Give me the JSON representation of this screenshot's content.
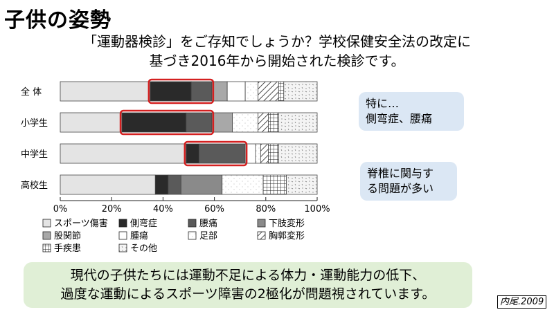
{
  "title": "子供の姿勢",
  "subtitle_lines": [
    "「運動器検診」をご存知でしょうか？学校保健安全法の改定に",
    "基づき2016年から開始された検診です。"
  ],
  "callouts": [
    {
      "lines": [
        "特に…",
        "側弯症、腰痛"
      ]
    },
    {
      "lines": [
        "脊椎に関与す",
        "る問題が多い"
      ]
    }
  ],
  "summary_lines": [
    "現代の子供たちには運動不足による体力・運動能力の低下、",
    "過度な運動によるスポーツ障害の2極化が問題視されています。"
  ],
  "citation": "内尾.2009",
  "chart_data": {
    "type": "bar",
    "orientation": "horizontal",
    "stacked": true,
    "categories": [
      "全 体",
      "小学生",
      "中学生",
      "高校生"
    ],
    "xlim": [
      0,
      100
    ],
    "x_ticks": [
      "0%",
      "20%",
      "40%",
      "60%",
      "80%",
      "100%"
    ],
    "series": [
      {
        "name": "スポーツ傷害",
        "pattern": "light",
        "values": [
          35,
          24,
          49,
          37
        ]
      },
      {
        "name": "側弯症",
        "pattern": "black",
        "values": [
          16,
          25,
          5,
          5
        ]
      },
      {
        "name": "腰痛",
        "pattern": "dark",
        "values": [
          8,
          10,
          18,
          5
        ]
      },
      {
        "name": "下肢変形",
        "pattern": "mid",
        "values": [
          0,
          0,
          0,
          16
        ]
      },
      {
        "name": "股関節",
        "pattern": "midlight",
        "values": [
          6,
          8,
          0,
          0
        ]
      },
      {
        "name": "腫瘍",
        "pattern": "white",
        "values": [
          7,
          0,
          4,
          0
        ]
      },
      {
        "name": "足部",
        "pattern": "white2",
        "values": [
          5,
          10,
          2,
          16
        ]
      },
      {
        "name": "胸郭変形",
        "pattern": "hatch",
        "values": [
          8,
          4,
          3,
          0
        ]
      },
      {
        "name": "手疾患",
        "pattern": "grid",
        "values": [
          2,
          4,
          4,
          9
        ]
      },
      {
        "name": "その他",
        "pattern": "dots",
        "values": [
          13,
          15,
          15,
          12
        ]
      }
    ],
    "highlights": [
      {
        "category": "全 体",
        "from": 35,
        "to": 59
      },
      {
        "category": "小学生",
        "from": 24,
        "to": 59
      },
      {
        "category": "中学生",
        "from": 49,
        "to": 72
      }
    ]
  }
}
